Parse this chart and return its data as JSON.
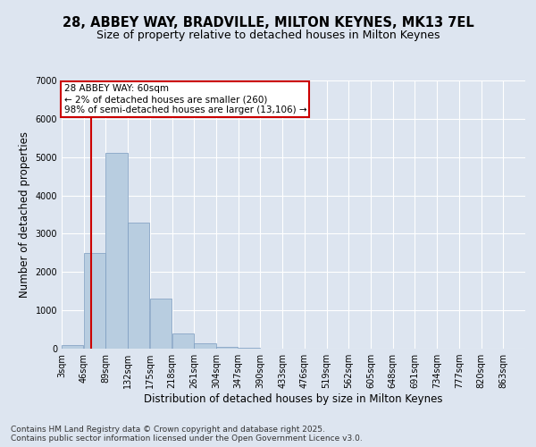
{
  "title_line1": "28, ABBEY WAY, BRADVILLE, MILTON KEYNES, MK13 7EL",
  "title_line2": "Size of property relative to detached houses in Milton Keynes",
  "xlabel": "Distribution of detached houses by size in Milton Keynes",
  "ylabel": "Number of detached properties",
  "background_color": "#dde5f0",
  "fig_background_color": "#dde5f0",
  "bar_color": "#b8cde0",
  "bar_edge_color": "#7a9bbf",
  "grid_color": "#ffffff",
  "categories": [
    "3sqm",
    "46sqm",
    "89sqm",
    "132sqm",
    "175sqm",
    "218sqm",
    "261sqm",
    "304sqm",
    "347sqm",
    "390sqm",
    "433sqm",
    "476sqm",
    "519sqm",
    "562sqm",
    "605sqm",
    "648sqm",
    "691sqm",
    "734sqm",
    "777sqm",
    "820sqm",
    "863sqm"
  ],
  "bin_edges": [
    3,
    46,
    89,
    132,
    175,
    218,
    261,
    304,
    347,
    390,
    433,
    476,
    519,
    562,
    605,
    648,
    691,
    734,
    777,
    820,
    863
  ],
  "bar_heights": [
    100,
    2500,
    5100,
    3300,
    1300,
    400,
    150,
    50,
    15,
    5,
    2,
    1,
    0,
    0,
    0,
    0,
    0,
    0,
    0,
    0
  ],
  "property_size": 60,
  "property_size_label": "28 ABBEY WAY: 60sqm",
  "annotation_line1": "← 2% of detached houses are smaller (260)",
  "annotation_line2": "98% of semi-detached houses are larger (13,106) →",
  "red_line_color": "#cc0000",
  "annotation_box_color": "#ffffff",
  "annotation_box_edge": "#cc0000",
  "ylim": [
    0,
    7000
  ],
  "yticks": [
    0,
    1000,
    2000,
    3000,
    4000,
    5000,
    6000,
    7000
  ],
  "footer_line1": "Contains HM Land Registry data © Crown copyright and database right 2025.",
  "footer_line2": "Contains public sector information licensed under the Open Government Licence v3.0.",
  "title_fontsize": 10.5,
  "subtitle_fontsize": 9,
  "axis_label_fontsize": 8.5,
  "tick_fontsize": 7,
  "footer_fontsize": 6.5,
  "annotation_fontsize": 7.5
}
